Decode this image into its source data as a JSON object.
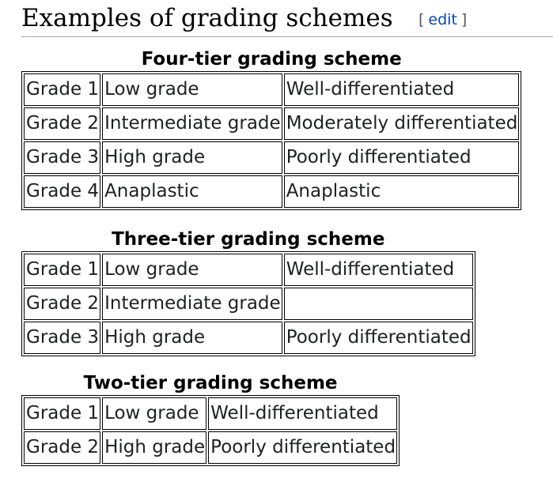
{
  "section": {
    "title": "Examples of grading schemes",
    "edit_open": "[",
    "edit_label": "edit",
    "edit_close": "]"
  },
  "tables": [
    {
      "caption": "Four-tier grading scheme",
      "rows": [
        [
          "Grade 1",
          "Low grade",
          "Well-differentiated"
        ],
        [
          "Grade 2",
          "Intermediate grade",
          "Moderately differentiated"
        ],
        [
          "Grade 3",
          "High grade",
          "Poorly differentiated"
        ],
        [
          "Grade 4",
          "Anaplastic",
          "Anaplastic"
        ]
      ]
    },
    {
      "caption": "Three-tier grading scheme",
      "rows": [
        [
          "Grade 1",
          "Low grade",
          "Well-differentiated"
        ],
        [
          "Grade 2",
          "Intermediate grade",
          ""
        ],
        [
          "Grade 3",
          "High grade",
          "Poorly differentiated"
        ]
      ]
    },
    {
      "caption": "Two-tier grading scheme",
      "rows": [
        [
          "Grade 1",
          "Low grade",
          "Well-differentiated"
        ],
        [
          "Grade 2",
          "High grade",
          "Poorly differentiated"
        ]
      ]
    }
  ]
}
